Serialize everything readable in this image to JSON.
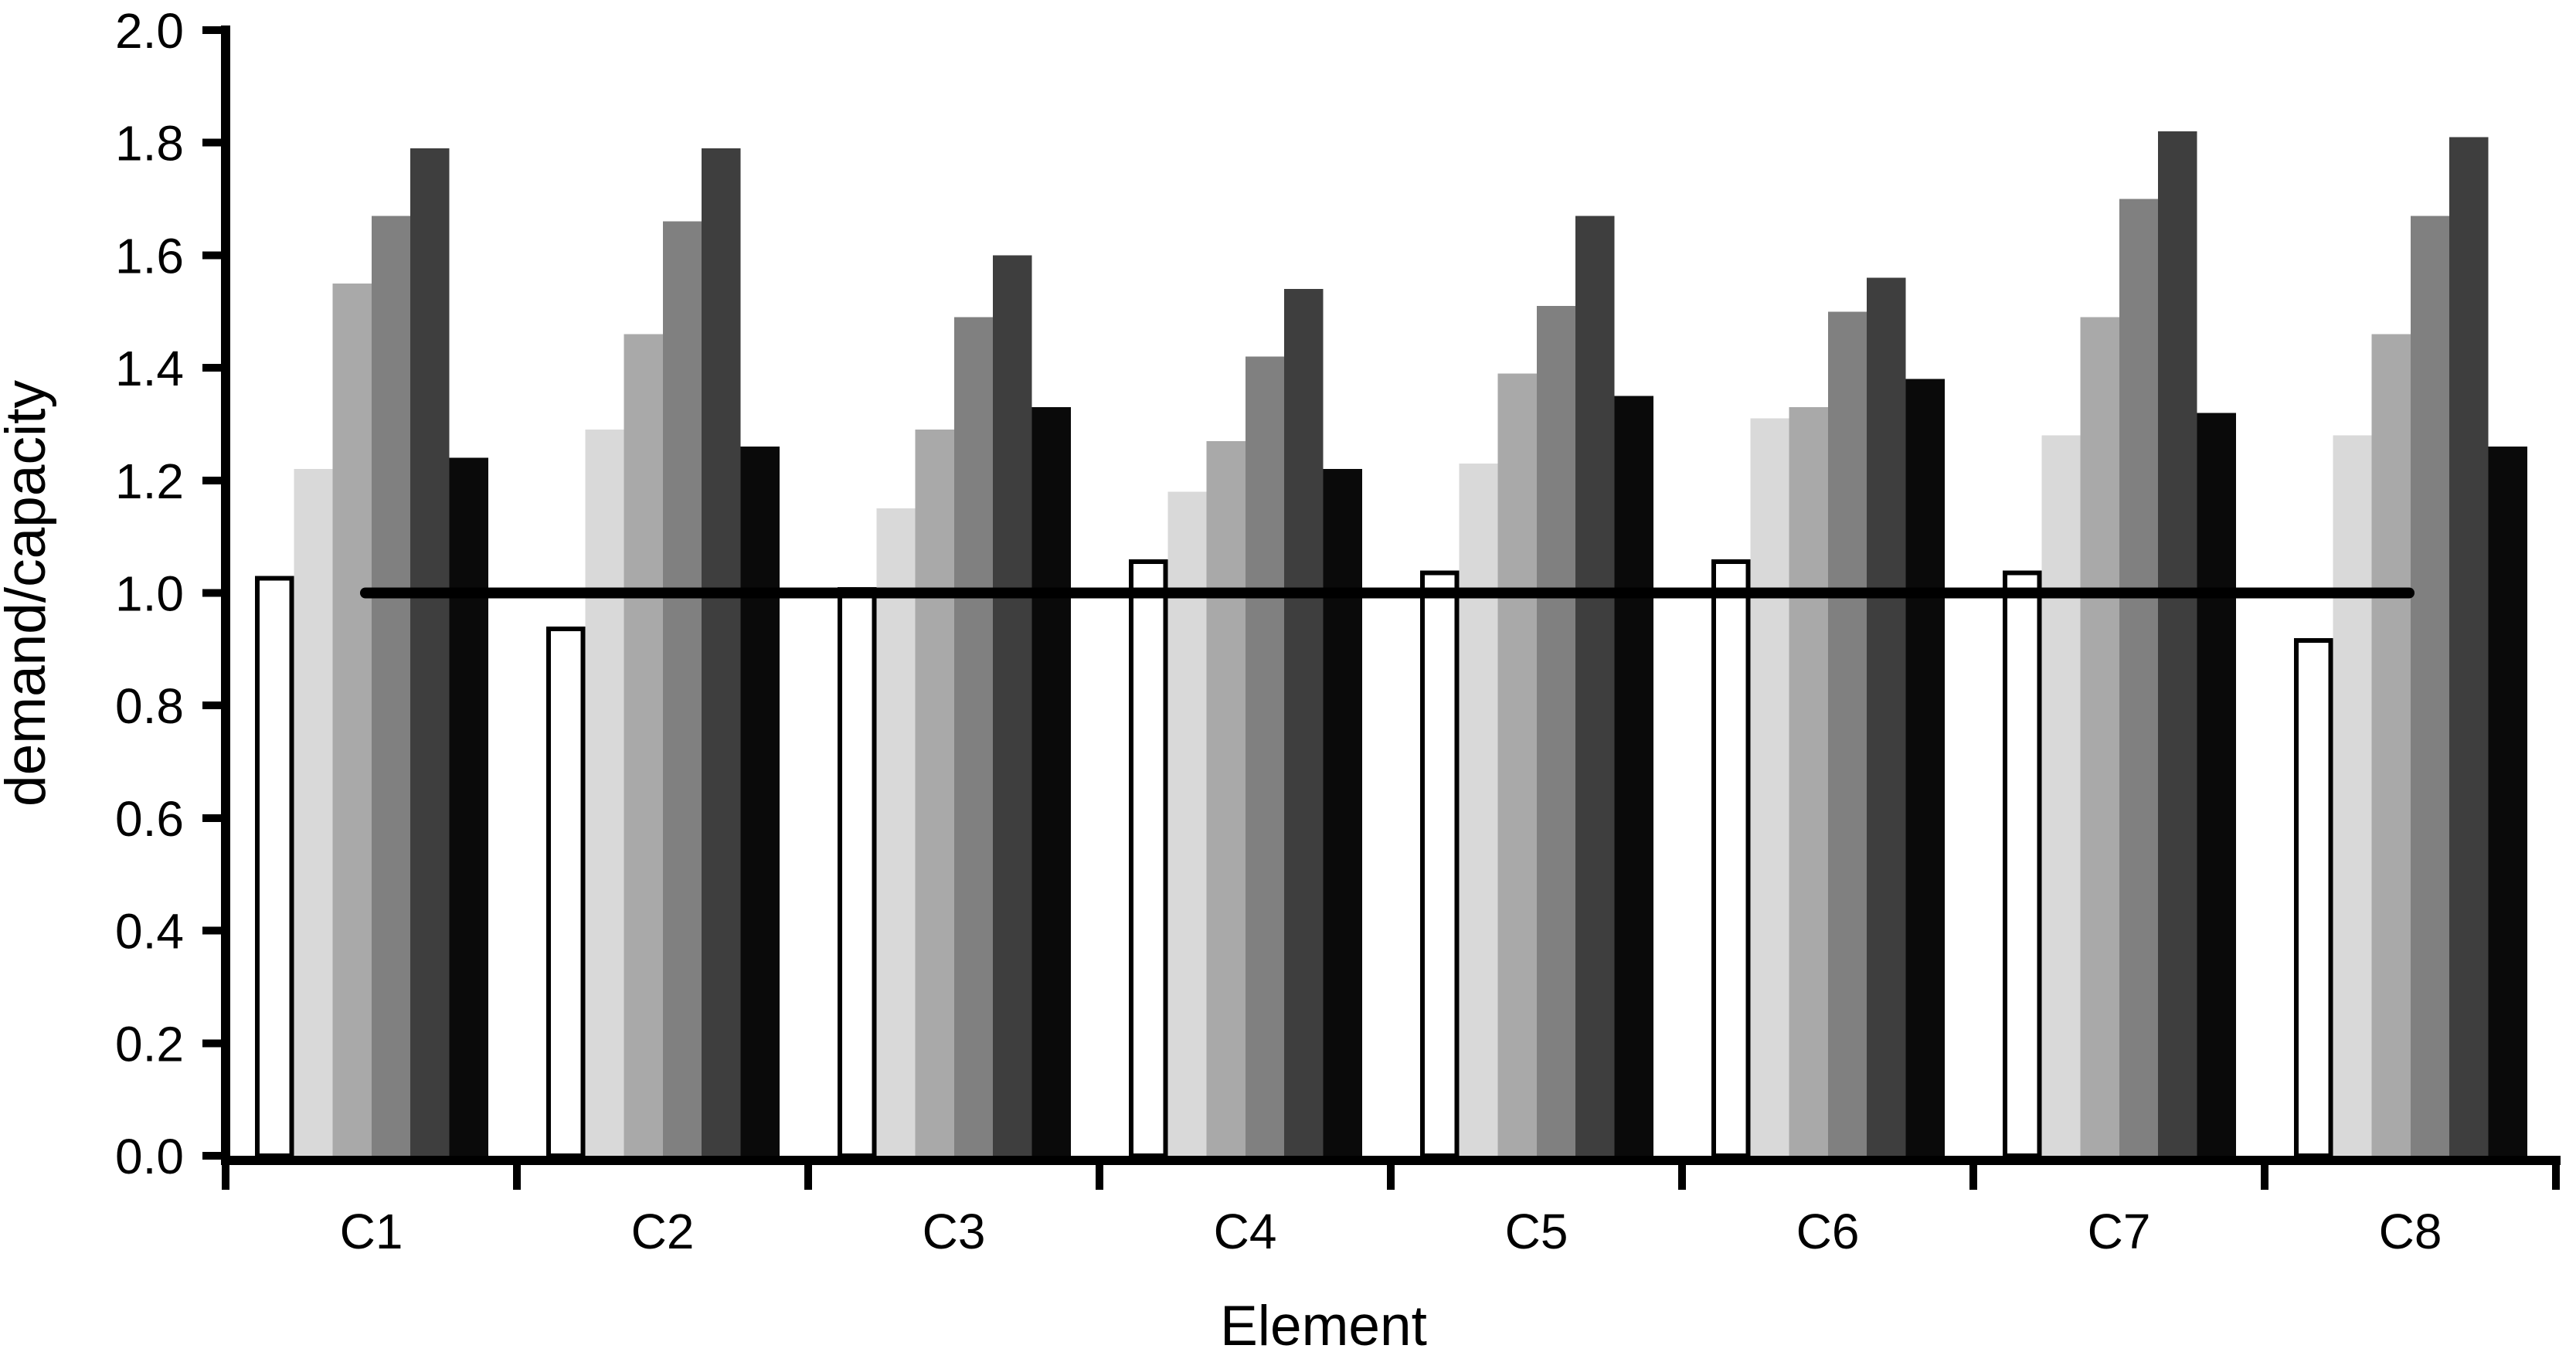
{
  "chart_data": {
    "type": "bar",
    "title": "",
    "xlabel": "Element",
    "ylabel": "demand/capacity",
    "categories": [
      "C1",
      "C2",
      "C3",
      "C4",
      "C5",
      "C6",
      "C7",
      "C8"
    ],
    "series": [
      {
        "name": "white",
        "color": "#ffffff",
        "outline": "#000000",
        "values": [
          1.03,
          0.94,
          1.01,
          1.06,
          1.04,
          1.06,
          1.04,
          0.92
        ]
      },
      {
        "name": "light-gray",
        "color": "#d9d9d9",
        "values": [
          1.22,
          1.29,
          1.15,
          1.18,
          1.23,
          1.31,
          1.28,
          1.28
        ]
      },
      {
        "name": "medium-gray",
        "color": "#a9a9a9",
        "values": [
          1.55,
          1.46,
          1.29,
          1.27,
          1.39,
          1.33,
          1.49,
          1.46
        ]
      },
      {
        "name": "gray",
        "color": "#808080",
        "values": [
          1.67,
          1.66,
          1.49,
          1.42,
          1.51,
          1.5,
          1.7,
          1.67
        ]
      },
      {
        "name": "dark-gray",
        "color": "#3e3e3e",
        "values": [
          1.79,
          1.79,
          1.6,
          1.54,
          1.67,
          1.56,
          1.82,
          1.81
        ]
      },
      {
        "name": "black",
        "color": "#0a0a0a",
        "values": [
          1.24,
          1.26,
          1.33,
          1.22,
          1.35,
          1.38,
          1.32,
          1.26
        ]
      }
    ],
    "y_ticks": [
      "0.0",
      "0.2",
      "0.4",
      "0.6",
      "0.8",
      "1.0",
      "1.2",
      "1.4",
      "1.6",
      "1.8",
      "2.0"
    ],
    "ylim": [
      0.0,
      2.0
    ],
    "y_tick_step": 0.2,
    "grid": false,
    "legend": "none",
    "background": "#ffffff",
    "axis_color": "#000000",
    "reference_line": {
      "value": 1.0,
      "color": "#000000",
      "span_frac": [
        0.06,
        0.937
      ]
    }
  }
}
